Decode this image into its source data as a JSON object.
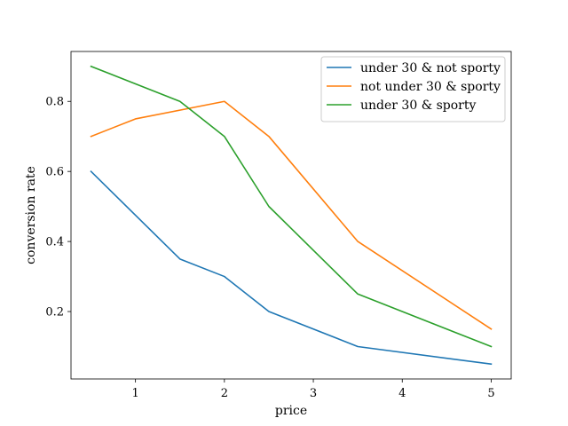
{
  "chart_data": {
    "type": "line",
    "title": "",
    "xlabel": "price",
    "ylabel": "conversion rate",
    "xlim": [
      0.275,
      5.225
    ],
    "ylim": [
      0.0075,
      0.9425
    ],
    "x_ticks": [
      1,
      2,
      3,
      4,
      5
    ],
    "y_ticks": [
      0.2,
      0.4,
      0.6,
      0.8
    ],
    "x_tick_labels": [
      "1",
      "2",
      "3",
      "4",
      "5"
    ],
    "y_tick_labels": [
      "0.2",
      "0.4",
      "0.6",
      "0.8"
    ],
    "grid": false,
    "legend_position": "top-right",
    "series": [
      {
        "name": "under 30 & not sporty",
        "color": "#1f77b4",
        "points": [
          [
            0.5,
            0.6
          ],
          [
            1.5,
            0.35
          ],
          [
            2.0,
            0.3
          ],
          [
            2.5,
            0.2
          ],
          [
            3.5,
            0.1
          ],
          [
            5.0,
            0.05
          ]
        ]
      },
      {
        "name": "not under 30 & sporty",
        "color": "#ff7f0e",
        "points": [
          [
            0.5,
            0.7
          ],
          [
            1.0,
            0.75
          ],
          [
            2.0,
            0.8
          ],
          [
            2.5,
            0.7
          ],
          [
            3.5,
            0.4
          ],
          [
            5.0,
            0.15
          ]
        ]
      },
      {
        "name": "under 30 & sporty",
        "color": "#2ca02c",
        "points": [
          [
            0.5,
            0.9
          ],
          [
            1.5,
            0.8
          ],
          [
            2.0,
            0.7
          ],
          [
            2.5,
            0.5
          ],
          [
            3.5,
            0.25
          ],
          [
            5.0,
            0.1
          ]
        ]
      }
    ]
  }
}
